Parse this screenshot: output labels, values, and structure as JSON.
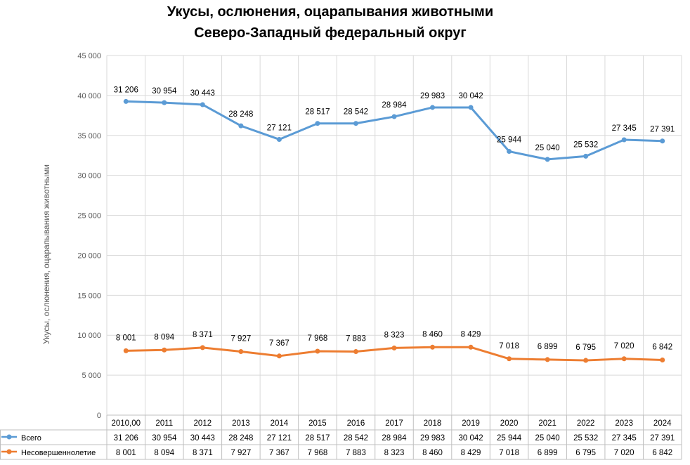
{
  "chart_data": {
    "type": "line",
    "title": "Укусы, ослюнения, оцарапывания животными",
    "subtitle": "Северо-Западный федеральный округ",
    "ylabel": "Укусы, ослюнения, оцарапывания животными",
    "xlabel": "",
    "ylim": [
      0,
      45000
    ],
    "y_ticks": [
      "0",
      "5 000",
      "10 000",
      "15 000",
      "20 000",
      "25 000",
      "30 000",
      "35 000",
      "40 000",
      "45 000"
    ],
    "y_tick_values": [
      0,
      5000,
      10000,
      15000,
      20000,
      25000,
      30000,
      35000,
      40000,
      45000
    ],
    "categories": [
      "2010,00",
      "2011",
      "2012",
      "2013",
      "2014",
      "2015",
      "2016",
      "2017",
      "2018",
      "2019",
      "2020",
      "2021",
      "2022",
      "2023",
      "2024"
    ],
    "grid": true,
    "legend": "data-table",
    "series": [
      {
        "name": "Всего",
        "color": "#5B9BD5",
        "plot_values": [
          39250,
          39100,
          38850,
          36200,
          34500,
          36500,
          36500,
          37350,
          38500,
          38500,
          33000,
          32000,
          32400,
          34450,
          34300
        ],
        "labels": [
          "31 206",
          "30 954",
          "30 443",
          "28 248",
          "27 121",
          "28 517",
          "28 542",
          "28 984",
          "29 983",
          "30 042",
          "25 944",
          "25 040",
          "25 532",
          "27 345",
          "27 391"
        ]
      },
      {
        "name": "Несовершеннолетие",
        "color": "#ED7D31",
        "plot_values": [
          8050,
          8150,
          8450,
          7950,
          7400,
          8000,
          7950,
          8400,
          8500,
          8500,
          7050,
          6950,
          6850,
          7050,
          6900
        ],
        "labels": [
          "8 001",
          "8 094",
          "8 371",
          "7 927",
          "7 367",
          "7 968",
          "7 883",
          "8 323",
          "8 460",
          "8 429",
          "7 018",
          "6 899",
          "6 795",
          "7 020",
          "6 842"
        ]
      }
    ]
  }
}
